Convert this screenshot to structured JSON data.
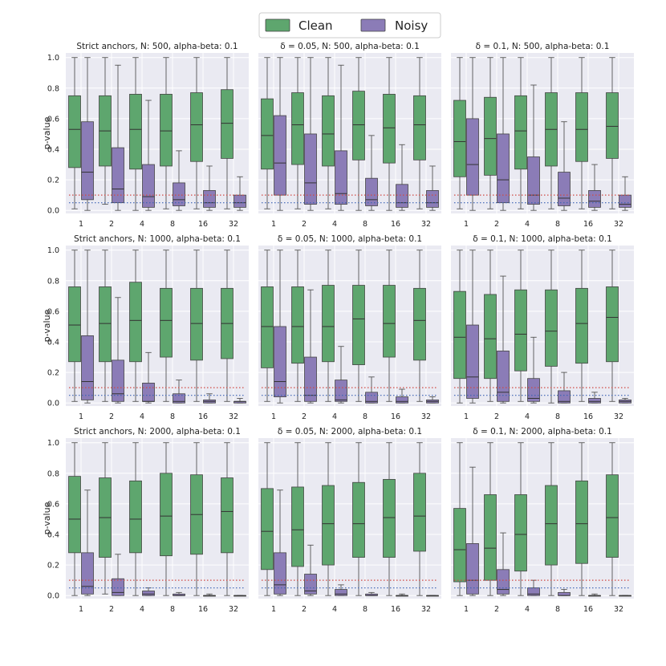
{
  "legend": {
    "clean": "Clean",
    "noisy": "Noisy"
  },
  "colors": {
    "clean": "#5ea66e",
    "noisy": "#8b7cb7",
    "line_0_1": "#d04a44",
    "line_0_05": "#3a62b4",
    "edge": "#444444"
  },
  "chart_data": {
    "type": "box",
    "layout": "3x3 grid",
    "categories": [
      "1",
      "2",
      "4",
      "8",
      "16",
      "32"
    ],
    "ylabel": "p-value",
    "ylim": [
      -0.02,
      1.03
    ],
    "yticks": [
      0.0,
      0.2,
      0.4,
      0.6,
      0.8,
      1.0
    ],
    "ytick_labels": [
      "0.0",
      "0.2",
      "0.4",
      "0.6",
      "0.8",
      "1.0"
    ],
    "reference_lines": [
      {
        "y": 0.1,
        "color": "red",
        "style": "dotted"
      },
      {
        "y": 0.05,
        "color": "blue",
        "style": "dotted"
      }
    ],
    "box_format": "[whisker_low, q1, median, q3, whisker_high]",
    "panels": [
      {
        "title": "Strict anchors, N: 500, alpha-beta: 0.1",
        "clean": [
          [
            0.01,
            0.28,
            0.53,
            0.75,
            1.0
          ],
          [
            0.04,
            0.29,
            0.52,
            0.75,
            1.0
          ],
          [
            0.0,
            0.27,
            0.53,
            0.76,
            1.0
          ],
          [
            0.01,
            0.29,
            0.52,
            0.76,
            1.0
          ],
          [
            0.01,
            0.32,
            0.56,
            0.77,
            1.0
          ],
          [
            0.01,
            0.34,
            0.57,
            0.79,
            1.0
          ]
        ],
        "noisy": [
          [
            0.0,
            0.07,
            0.25,
            0.58,
            1.0
          ],
          [
            0.0,
            0.05,
            0.14,
            0.41,
            0.95
          ],
          [
            0.0,
            0.02,
            0.09,
            0.3,
            0.72
          ],
          [
            0.0,
            0.03,
            0.07,
            0.18,
            0.39
          ],
          [
            0.0,
            0.02,
            0.05,
            0.13,
            0.29
          ],
          [
            0.0,
            0.02,
            0.05,
            0.1,
            0.22
          ]
        ]
      },
      {
        "title": "δ = 0.05, N: 500, alpha-beta: 0.1",
        "clean": [
          [
            0.01,
            0.27,
            0.49,
            0.73,
            1.0
          ],
          [
            0.01,
            0.3,
            0.56,
            0.77,
            1.0
          ],
          [
            0.01,
            0.29,
            0.5,
            0.75,
            1.0
          ],
          [
            0.0,
            0.33,
            0.56,
            0.78,
            1.0
          ],
          [
            0.0,
            0.31,
            0.54,
            0.76,
            1.0
          ],
          [
            0.01,
            0.33,
            0.56,
            0.75,
            1.0
          ]
        ],
        "noisy": [
          [
            0.0,
            0.1,
            0.31,
            0.62,
            1.0
          ],
          [
            0.0,
            0.04,
            0.18,
            0.5,
            1.0
          ],
          [
            0.0,
            0.04,
            0.11,
            0.39,
            0.95
          ],
          [
            0.0,
            0.03,
            0.07,
            0.21,
            0.49
          ],
          [
            0.0,
            0.02,
            0.05,
            0.17,
            0.43
          ],
          [
            0.0,
            0.02,
            0.05,
            0.13,
            0.29
          ]
        ]
      },
      {
        "title": "δ = 0.1, N: 500, alpha-beta: 0.1",
        "clean": [
          [
            0.01,
            0.22,
            0.45,
            0.72,
            1.0
          ],
          [
            0.01,
            0.23,
            0.47,
            0.74,
            1.0
          ],
          [
            0.01,
            0.27,
            0.52,
            0.75,
            1.0
          ],
          [
            0.01,
            0.29,
            0.53,
            0.77,
            1.0
          ],
          [
            0.01,
            0.32,
            0.53,
            0.77,
            1.0
          ],
          [
            0.01,
            0.34,
            0.55,
            0.77,
            1.0
          ]
        ],
        "noisy": [
          [
            0.0,
            0.1,
            0.3,
            0.6,
            1.0
          ],
          [
            0.0,
            0.05,
            0.2,
            0.5,
            1.0
          ],
          [
            0.0,
            0.04,
            0.1,
            0.35,
            0.82
          ],
          [
            0.0,
            0.03,
            0.08,
            0.25,
            0.58
          ],
          [
            0.0,
            0.02,
            0.06,
            0.13,
            0.3
          ],
          [
            0.0,
            0.02,
            0.04,
            0.1,
            0.22
          ]
        ]
      },
      {
        "title": "Strict anchors, N: 1000, alpha-beta: 0.1",
        "clean": [
          [
            0.01,
            0.27,
            0.51,
            0.76,
            1.0
          ],
          [
            0.01,
            0.27,
            0.52,
            0.76,
            1.0
          ],
          [
            0.01,
            0.27,
            0.54,
            0.79,
            1.0
          ],
          [
            0.01,
            0.3,
            0.54,
            0.75,
            1.0
          ],
          [
            0.01,
            0.28,
            0.52,
            0.75,
            1.0
          ],
          [
            0.01,
            0.29,
            0.52,
            0.75,
            1.0
          ]
        ],
        "noisy": [
          [
            0.0,
            0.02,
            0.14,
            0.44,
            1.0
          ],
          [
            0.0,
            0.01,
            0.06,
            0.28,
            0.69
          ],
          [
            0.0,
            0.01,
            0.01,
            0.13,
            0.33
          ],
          [
            0.0,
            0.0,
            0.01,
            0.06,
            0.15
          ],
          [
            0.0,
            0.0,
            0.01,
            0.02,
            0.06
          ],
          [
            0.0,
            0.0,
            0.01,
            0.01,
            0.03
          ]
        ]
      },
      {
        "title": "δ = 0.05, N: 1000, alpha-beta: 0.1",
        "clean": [
          [
            0.01,
            0.23,
            0.5,
            0.76,
            1.0
          ],
          [
            0.01,
            0.26,
            0.5,
            0.76,
            1.0
          ],
          [
            0.01,
            0.27,
            0.5,
            0.77,
            1.0
          ],
          [
            0.01,
            0.25,
            0.55,
            0.77,
            1.0
          ],
          [
            0.01,
            0.3,
            0.52,
            0.77,
            1.0
          ],
          [
            0.01,
            0.28,
            0.54,
            0.75,
            1.0
          ]
        ],
        "noisy": [
          [
            0.0,
            0.04,
            0.14,
            0.5,
            1.0
          ],
          [
            0.0,
            0.01,
            0.05,
            0.3,
            0.74
          ],
          [
            0.0,
            0.01,
            0.02,
            0.15,
            0.37
          ],
          [
            0.0,
            0.0,
            0.01,
            0.07,
            0.17
          ],
          [
            0.0,
            0.0,
            0.01,
            0.04,
            0.09
          ],
          [
            0.0,
            0.0,
            0.01,
            0.02,
            0.04
          ]
        ]
      },
      {
        "title": "δ = 0.1, N: 1000, alpha-beta: 0.1",
        "clean": [
          [
            0.0,
            0.16,
            0.43,
            0.73,
            1.0
          ],
          [
            0.01,
            0.16,
            0.42,
            0.71,
            1.0
          ],
          [
            0.01,
            0.21,
            0.45,
            0.74,
            1.0
          ],
          [
            0.0,
            0.24,
            0.47,
            0.74,
            1.0
          ],
          [
            0.01,
            0.26,
            0.52,
            0.75,
            1.0
          ],
          [
            0.01,
            0.27,
            0.56,
            0.76,
            1.0
          ]
        ],
        "noisy": [
          [
            0.0,
            0.03,
            0.17,
            0.51,
            1.0
          ],
          [
            0.0,
            0.01,
            0.07,
            0.34,
            0.83
          ],
          [
            0.0,
            0.01,
            0.03,
            0.16,
            0.43
          ],
          [
            0.0,
            0.0,
            0.01,
            0.08,
            0.2
          ],
          [
            0.0,
            0.0,
            0.01,
            0.03,
            0.07
          ],
          [
            0.0,
            0.0,
            0.01,
            0.02,
            0.03
          ]
        ]
      },
      {
        "title": "Strict anchors, N: 2000, alpha-beta: 0.1",
        "clean": [
          [
            0.0,
            0.28,
            0.5,
            0.78,
            1.0
          ],
          [
            0.01,
            0.25,
            0.51,
            0.77,
            1.0
          ],
          [
            0.0,
            0.28,
            0.5,
            0.75,
            1.0
          ],
          [
            0.0,
            0.26,
            0.52,
            0.8,
            1.0
          ],
          [
            0.0,
            0.27,
            0.53,
            0.79,
            1.0
          ],
          [
            0.0,
            0.28,
            0.55,
            0.77,
            1.0
          ]
        ],
        "noisy": [
          [
            0.0,
            0.01,
            0.06,
            0.28,
            0.69
          ],
          [
            0.0,
            0.0,
            0.02,
            0.11,
            0.27
          ],
          [
            0.0,
            0.0,
            0.01,
            0.03,
            0.05
          ],
          [
            0.0,
            0.0,
            0.0,
            0.01,
            0.02
          ],
          [
            0.0,
            0.0,
            0.0,
            0.0,
            0.01
          ],
          [
            0.0,
            0.0,
            0.0,
            0.0,
            0.0
          ]
        ]
      },
      {
        "title": "δ = 0.05, N: 2000, alpha-beta: 0.1",
        "clean": [
          [
            0.0,
            0.17,
            0.42,
            0.7,
            1.0
          ],
          [
            0.0,
            0.19,
            0.43,
            0.71,
            1.0
          ],
          [
            0.0,
            0.2,
            0.47,
            0.72,
            1.0
          ],
          [
            0.0,
            0.25,
            0.47,
            0.74,
            1.0
          ],
          [
            0.0,
            0.25,
            0.51,
            0.76,
            1.0
          ],
          [
            0.0,
            0.29,
            0.52,
            0.8,
            1.0
          ]
        ],
        "noisy": [
          [
            0.0,
            0.01,
            0.07,
            0.28,
            0.69
          ],
          [
            0.0,
            0.01,
            0.03,
            0.14,
            0.33
          ],
          [
            0.0,
            0.0,
            0.01,
            0.04,
            0.07
          ],
          [
            0.0,
            0.0,
            0.0,
            0.01,
            0.02
          ],
          [
            0.0,
            0.0,
            0.0,
            0.0,
            0.01
          ],
          [
            0.0,
            0.0,
            0.0,
            0.0,
            0.0
          ]
        ]
      },
      {
        "title": "δ = 0.1, N: 2000, alpha-beta: 0.1",
        "clean": [
          [
            0.0,
            0.09,
            0.3,
            0.57,
            1.0
          ],
          [
            0.0,
            0.1,
            0.31,
            0.66,
            1.0
          ],
          [
            0.0,
            0.16,
            0.4,
            0.66,
            1.0
          ],
          [
            0.0,
            0.2,
            0.47,
            0.72,
            1.0
          ],
          [
            0.0,
            0.21,
            0.47,
            0.75,
            1.0
          ],
          [
            0.0,
            0.25,
            0.51,
            0.79,
            1.0
          ]
        ],
        "noisy": [
          [
            0.0,
            0.01,
            0.1,
            0.34,
            0.84
          ],
          [
            0.0,
            0.01,
            0.04,
            0.17,
            0.41
          ],
          [
            0.0,
            0.0,
            0.01,
            0.05,
            0.1
          ],
          [
            0.0,
            0.0,
            0.0,
            0.02,
            0.04
          ],
          [
            0.0,
            0.0,
            0.0,
            0.0,
            0.01
          ],
          [
            0.0,
            0.0,
            0.0,
            0.0,
            0.0
          ]
        ]
      }
    ]
  }
}
